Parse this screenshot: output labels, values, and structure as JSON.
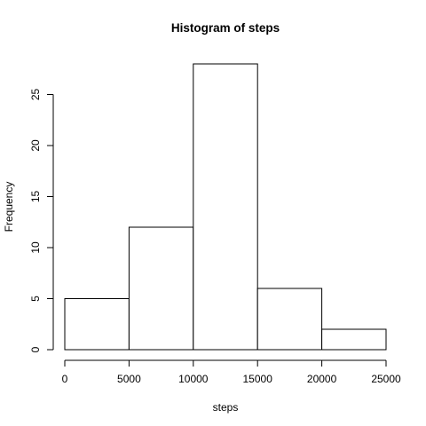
{
  "chart_data": {
    "type": "bar",
    "title": "Histogram of steps",
    "xlabel": "steps",
    "ylabel": "Frequency",
    "bins": [
      {
        "start": 0,
        "end": 5000,
        "count": 5
      },
      {
        "start": 5000,
        "end": 10000,
        "count": 12
      },
      {
        "start": 10000,
        "end": 15000,
        "count": 28
      },
      {
        "start": 15000,
        "end": 20000,
        "count": 6
      },
      {
        "start": 20000,
        "end": 25000,
        "count": 2
      }
    ],
    "xlim": [
      0,
      25000
    ],
    "ylim": [
      0,
      28
    ],
    "x_ticks": [
      0,
      5000,
      10000,
      15000,
      20000,
      25000
    ],
    "y_ticks": [
      0,
      5,
      10,
      15,
      20,
      25
    ],
    "grid": false,
    "legend": "none",
    "colors": {
      "bar_fill": "#ffffff",
      "bar_stroke": "#000000"
    }
  }
}
